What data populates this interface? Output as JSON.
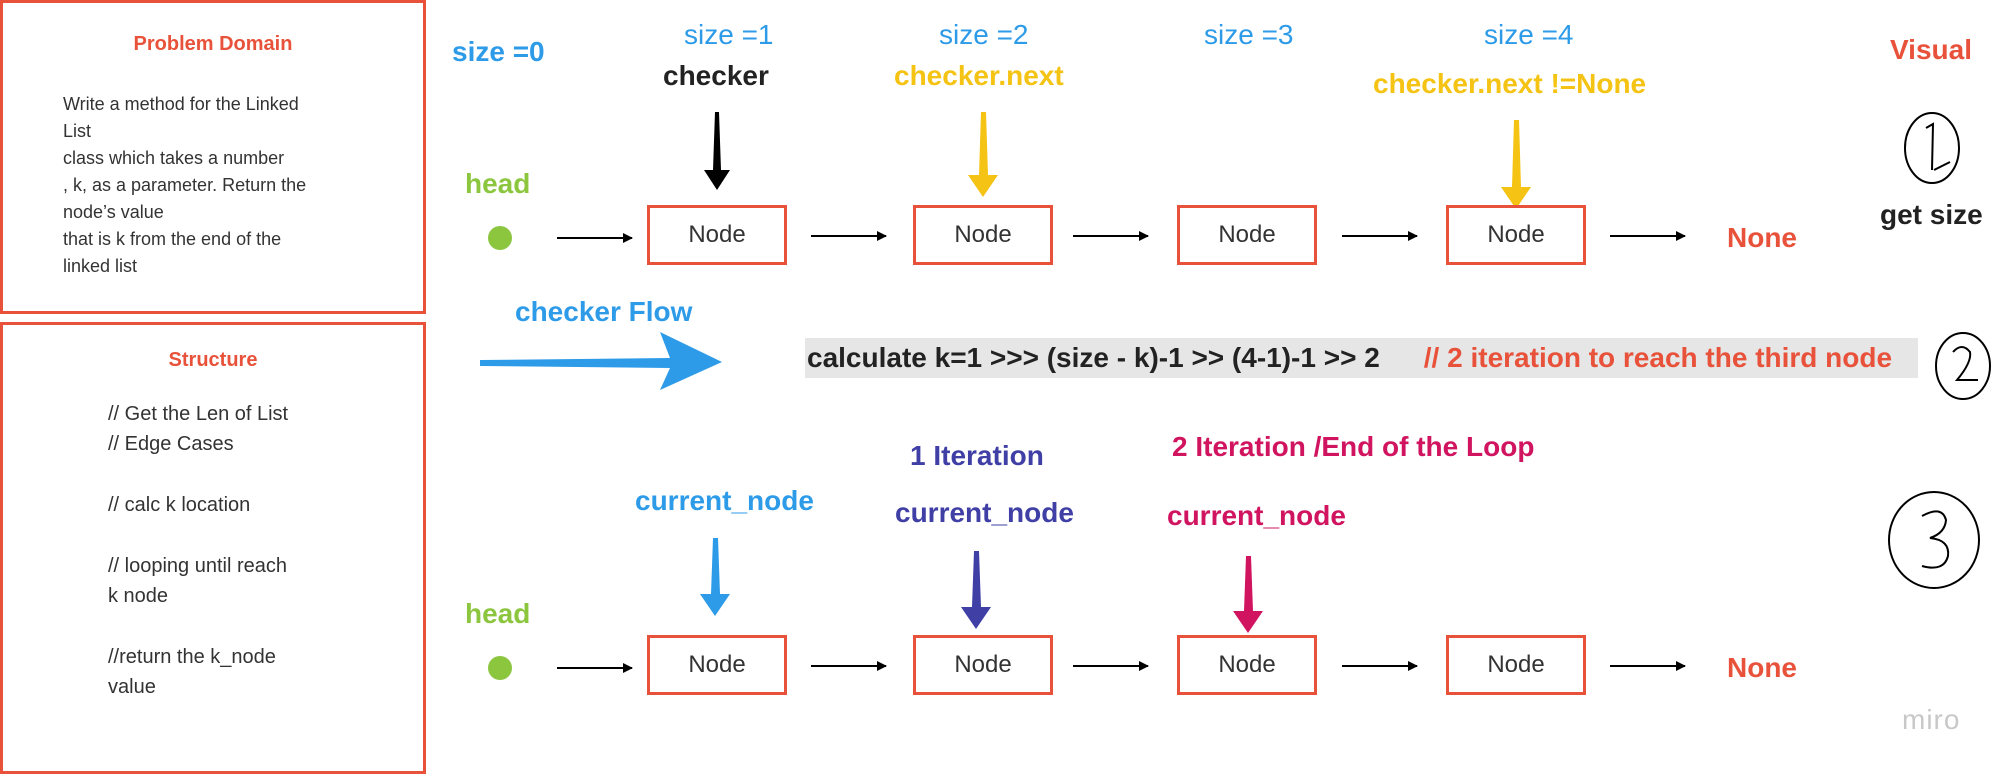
{
  "problem_domain": {
    "title": "Problem Domain",
    "lines": [
      "Write a method for the Linked",
      "List",
      " class which takes a number",
      ", k, as a parameter. Return the",
      "node’s value",
      " that is k from the end of the",
      "linked list"
    ]
  },
  "structure": {
    "title": "Structure",
    "lines": [
      "// Get the Len of List",
      "// Edge Cases",
      "// calc k location",
      "// looping until reach",
      "k node",
      "//return the k_node",
      "value"
    ]
  },
  "sizes": [
    "size =0",
    "size =1",
    "size =2",
    "size =3",
    "size =4"
  ],
  "row1": {
    "head": "head",
    "nodes": [
      "Node",
      "Node",
      "Node",
      "Node"
    ],
    "end": "None",
    "pointers": [
      "checker",
      "checker.next",
      "checker.next !=None"
    ]
  },
  "flow_label": "checker Flow",
  "calc": {
    "main": "calculate k=1  >>> (size - k)-1 >> (4-1)-1 >> 2",
    "comment": "// 2 iteration to reach the third node"
  },
  "row2": {
    "head": "head",
    "nodes": [
      "Node",
      "Node",
      "Node",
      "Node"
    ],
    "end": "None",
    "pointers": [
      "current_node",
      "current_node",
      "current_node"
    ],
    "iterations": [
      "1 Iteration",
      "2 Iteration /End of the Loop"
    ]
  },
  "visual": {
    "title": "Visual",
    "steps": [
      "1",
      "2",
      "3"
    ],
    "get_size": "get size"
  },
  "watermark": "miro",
  "colors": {
    "accent": "#e8523a",
    "blue": "#2d9be8",
    "gold": "#f4c313",
    "green": "#8cc63f",
    "indigo": "#3f3fa6",
    "magenta": "#d0145f"
  }
}
